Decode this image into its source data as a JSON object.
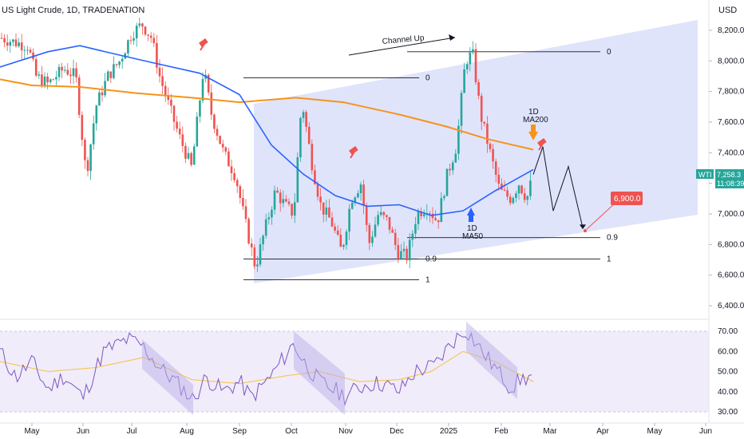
{
  "chart_data": {
    "type": "candlestick",
    "title": "US Light Crude, 1D, TRADENATION",
    "currency": "USD",
    "symbol": "WTI",
    "last_price": "7,258.3",
    "countdown": "11:08:39",
    "target_label": "6,900.0",
    "channel_label": "Channel Up",
    "ma50_label": [
      "1D",
      "MA50"
    ],
    "ma200_label": [
      "1D",
      "MA200"
    ],
    "colors": {
      "up": "#26a69a",
      "down": "#ef5350",
      "ma50": "#2962ff",
      "ma200": "#f7931a",
      "channel": "#c5cef7",
      "rsi": "#7e57c2",
      "rsi_ma": "#f5c342",
      "rsi_band": "#e6e0f5",
      "target": "#ef5350",
      "price_tag": "#26a69a"
    },
    "x_ticks": [
      "May",
      "Jun",
      "Jul",
      "Aug",
      "Sep",
      "Oct",
      "Nov",
      "Dec",
      "2025",
      "Feb",
      "Mar",
      "Apr",
      "May",
      "Jun"
    ],
    "y_ticks": [
      "8,200.0",
      "8,000.0",
      "7,800.0",
      "7,600.0",
      "7,400.0",
      "7,200.0",
      "7,000.0",
      "6,800.0",
      "6,600.0",
      "6,400.0"
    ],
    "y_values": [
      8200,
      8000,
      7800,
      7600,
      7400,
      7200,
      7000,
      6800,
      6600,
      6400
    ],
    "rsi_ticks": [
      "70.00",
      "60.00",
      "50.00",
      "40.00",
      "30.00"
    ],
    "rsi_values": [
      70,
      60,
      50,
      40,
      30
    ],
    "fib_levels": [
      {
        "label": "0",
        "price": 7890
      },
      {
        "label": "1",
        "price": 6570
      },
      {
        "label": "0",
        "price": 8060
      },
      {
        "label": "0.9",
        "price": 6845
      },
      {
        "label": "0.9",
        "price": 6705
      },
      {
        "label": "1",
        "price": 6705
      }
    ],
    "ylim": [
      6340,
      8320
    ],
    "rsi_ylim": [
      27,
      76
    ]
  }
}
